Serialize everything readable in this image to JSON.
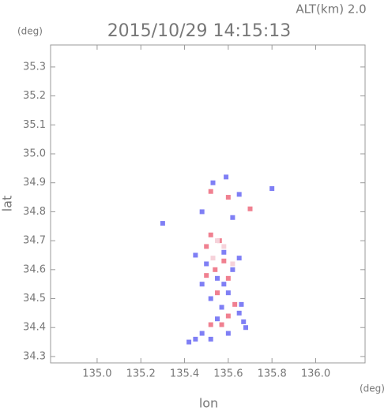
{
  "chart_data": {
    "type": "scatter",
    "title": "2015/10/29 14:15:13",
    "annotation": "ALT(km) 2.0",
    "y_unit": "(deg)",
    "x_unit": "(deg)",
    "xlabel": "lon",
    "ylabel": "lat",
    "xlim": [
      134.787,
      136.226
    ],
    "ylim": [
      34.278,
      35.376
    ],
    "xticks": [
      {
        "value": 135.0,
        "label": "135.0"
      },
      135.2,
      135.4,
      135.6,
      135.8,
      {
        "value": 136.0,
        "label": "136.0"
      }
    ],
    "yticks": [
      34.3,
      34.4,
      34.5,
      34.6,
      34.7,
      34.8,
      34.9,
      {
        "value": 35.0,
        "label": "35.0"
      },
      35.1,
      35.2,
      35.3
    ],
    "series": [
      {
        "color": "#7f7ff5",
        "x": [
          135.53,
          135.59,
          135.48,
          135.62,
          135.65,
          135.8,
          135.3,
          135.45,
          135.5,
          135.58,
          135.65,
          135.62,
          135.55,
          135.48,
          135.6,
          135.52,
          135.57,
          135.65,
          135.55,
          135.68,
          135.6,
          135.48,
          135.42,
          135.52,
          135.66,
          135.58,
          135.67,
          135.45
        ],
        "values": [
          34.9,
          34.92,
          34.8,
          34.78,
          34.86,
          34.88,
          34.76,
          34.65,
          34.62,
          34.66,
          34.64,
          34.6,
          34.57,
          34.55,
          34.52,
          34.5,
          34.47,
          34.45,
          34.43,
          34.4,
          34.38,
          34.38,
          34.35,
          34.36,
          34.48,
          34.55,
          34.42,
          34.36
        ]
      },
      {
        "color": "#f08090",
        "x": [
          135.52,
          135.6,
          135.7,
          135.52,
          135.56,
          135.5,
          135.58,
          135.54,
          135.6,
          135.5,
          135.63,
          135.57,
          135.52,
          135.6,
          135.55
        ],
        "values": [
          34.87,
          34.85,
          34.81,
          34.72,
          34.7,
          34.68,
          34.63,
          34.6,
          34.57,
          34.58,
          34.48,
          34.41,
          34.41,
          34.44,
          34.52
        ]
      },
      {
        "color": "#f6d2da",
        "x": [
          135.55,
          135.58,
          135.53,
          135.62
        ],
        "values": [
          34.7,
          34.68,
          34.64,
          34.62
        ]
      }
    ]
  }
}
